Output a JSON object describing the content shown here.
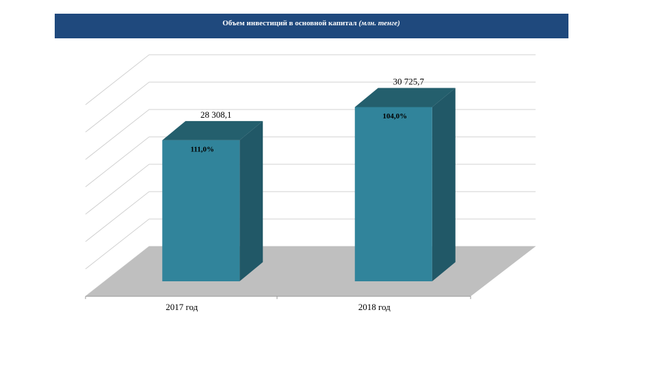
{
  "chart_data": {
    "type": "bar3d",
    "title": "Объем инвестиций в основной капитал",
    "unit": "(млн. тенге)",
    "categories": [
      "2017 год",
      "2018 год"
    ],
    "values": [
      28308.1,
      30725.7
    ],
    "value_labels": [
      "28 308,1",
      "30 725,7"
    ],
    "inner_labels": [
      "111,0%",
      "104,0%"
    ],
    "color": "#31849b",
    "ylim": [
      18000,
      32000
    ],
    "grid": true
  }
}
